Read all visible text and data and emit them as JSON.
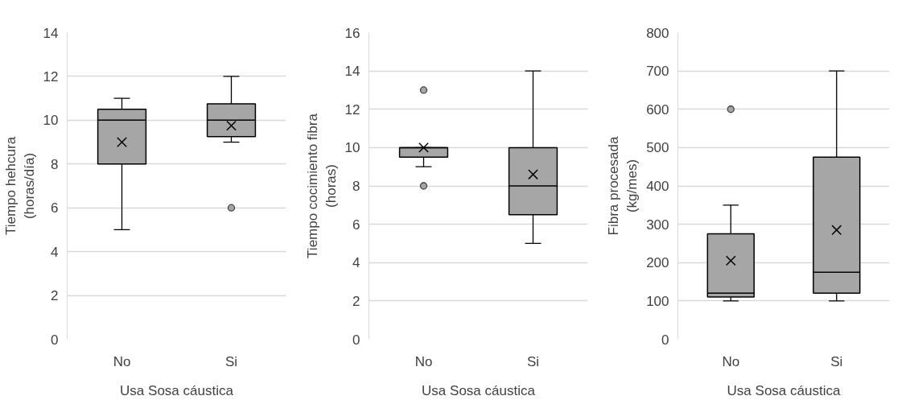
{
  "chart_data": [
    {
      "type": "box",
      "categories": [
        "No",
        "Si"
      ],
      "xlabel": "Usa Sosa cáustica",
      "ylabel": "Tiempo hehcura\n(horas/día)",
      "ylim": [
        0,
        14
      ],
      "yticks": [
        0,
        2,
        4,
        6,
        8,
        10,
        12,
        14
      ],
      "grid": "y",
      "series": [
        {
          "color": "#a6a6a6",
          "boxes": [
            {
              "low": 5,
              "q1": 8,
              "median": 10,
              "q3": 10.5,
              "high": 11,
              "mean": 9
            },
            {
              "low": 9,
              "q1": 9.25,
              "median": 10,
              "q3": 10.75,
              "high": 12,
              "mean": 9.75,
              "outliers": [
                6
              ]
            }
          ]
        }
      ]
    },
    {
      "type": "box",
      "categories": [
        "No",
        "Si"
      ],
      "xlabel": "Usa Sosa cáustica",
      "ylabel": "Tiempo cocimiento fibra\n(horas)",
      "ylim": [
        0,
        16
      ],
      "yticks": [
        0,
        2,
        4,
        6,
        8,
        10,
        12,
        14,
        16
      ],
      "grid": "y",
      "series": [
        {
          "color": "#a6a6a6",
          "boxes": [
            {
              "low": 9,
              "q1": 9.5,
              "median": 10,
              "q3": 10,
              "high": 10,
              "mean": 10,
              "outliers": [
                13,
                8
              ]
            },
            {
              "low": 5,
              "q1": 6.5,
              "median": 8,
              "q3": 10,
              "high": 14,
              "mean": 8.6
            }
          ]
        }
      ]
    },
    {
      "type": "box",
      "categories": [
        "No",
        "Si"
      ],
      "xlabel": "Usa Sosa cáustica",
      "ylabel": "Fibra procesada\n(kg/mes)",
      "ylim": [
        0,
        800
      ],
      "yticks": [
        0,
        100,
        200,
        300,
        400,
        500,
        600,
        700,
        800
      ],
      "grid": "y",
      "series": [
        {
          "color": "#a6a6a6",
          "boxes": [
            {
              "low": 100,
              "q1": 110,
              "median": 120,
              "q3": 275,
              "high": 350,
              "mean": 205,
              "outliers": [
                600
              ]
            },
            {
              "low": 100,
              "q1": 120,
              "median": 175,
              "q3": 475,
              "high": 700,
              "mean": 285
            }
          ]
        }
      ]
    }
  ]
}
